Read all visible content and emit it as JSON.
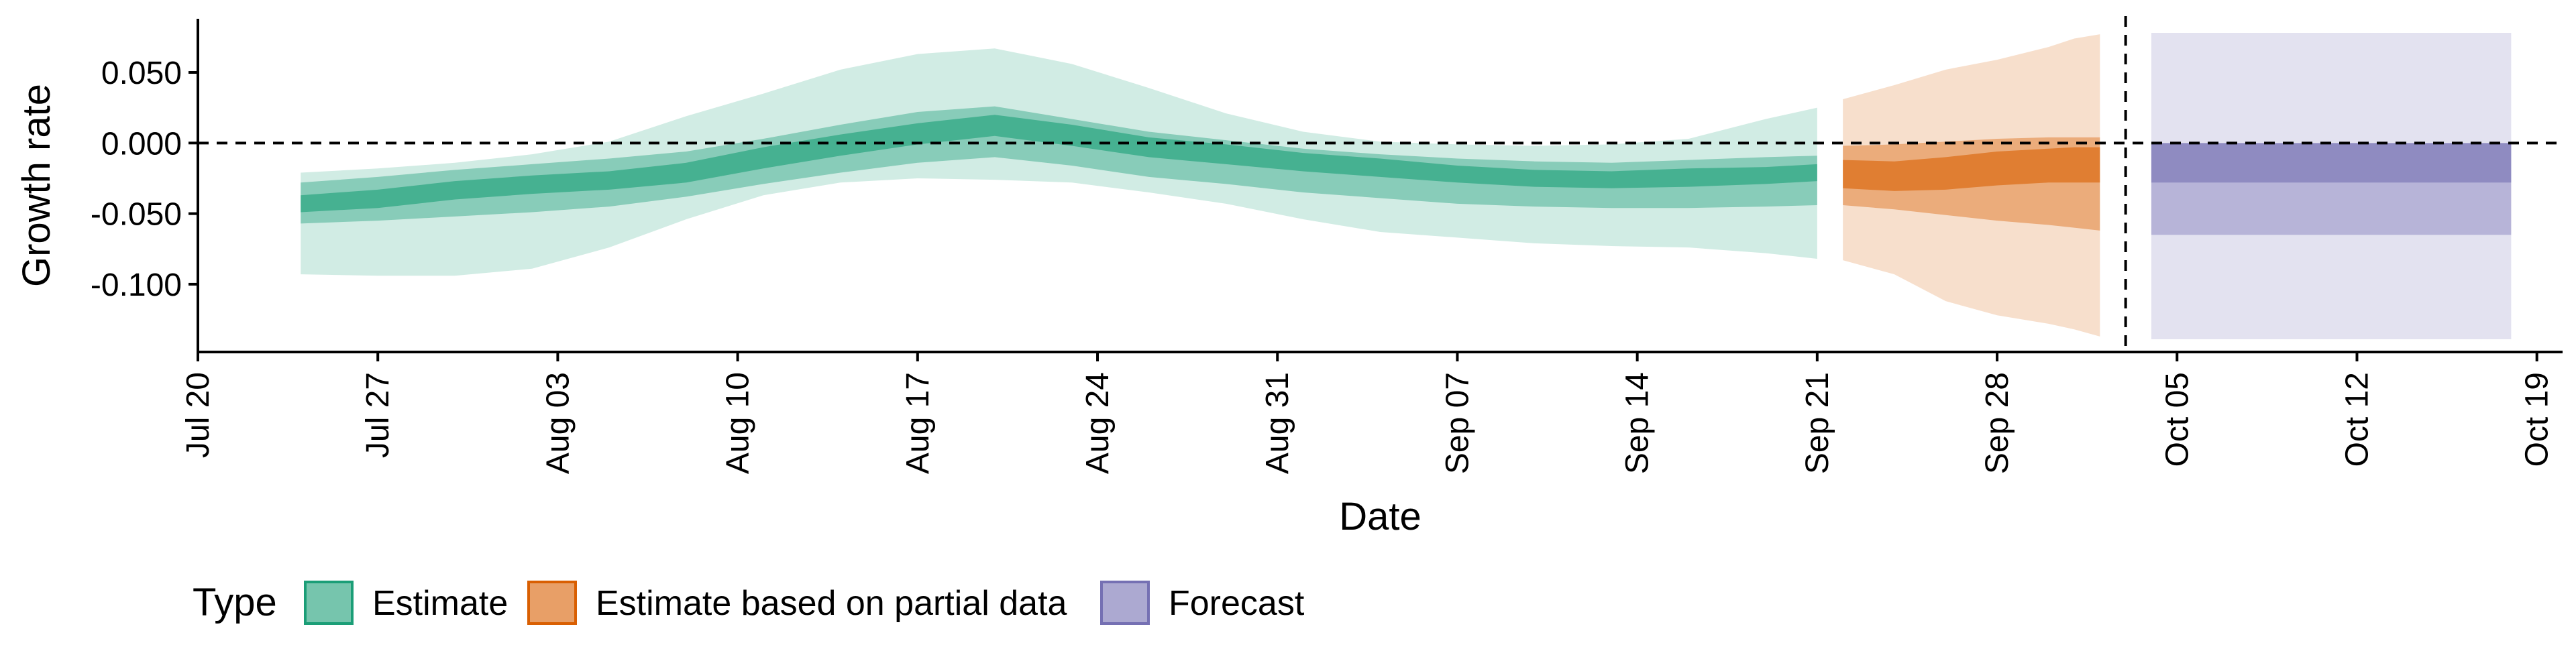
{
  "chart_data": {
    "type": "area",
    "title": "",
    "xlabel": "Date",
    "ylabel": "Growth rate",
    "x_ticks": [
      "Jul 20",
      "Jul 27",
      "Aug 03",
      "Aug 10",
      "Aug 17",
      "Aug 24",
      "Aug 31",
      "Sep 07",
      "Sep 14",
      "Sep 21",
      "Sep 28",
      "Oct 05",
      "Oct 12",
      "Oct 19"
    ],
    "x_tick_dates": [
      "2020-07-20",
      "2020-07-27",
      "2020-08-03",
      "2020-08-10",
      "2020-08-17",
      "2020-08-24",
      "2020-08-31",
      "2020-09-07",
      "2020-09-14",
      "2020-09-21",
      "2020-09-28",
      "2020-10-05",
      "2020-10-12",
      "2020-10-19"
    ],
    "y_ticks": [
      0.05,
      0.0,
      -0.05,
      -0.1
    ],
    "y_tick_labels": [
      "0.050",
      "0.000",
      "-0.050",
      "-0.100"
    ],
    "xlim": [
      "2020-07-20",
      "2020-10-20"
    ],
    "ylim": [
      -0.148,
      0.088
    ],
    "grid": false,
    "reference_lines": [
      {
        "orientation": "horizontal",
        "y": 0.0,
        "style": "dashed"
      },
      {
        "orientation": "vertical",
        "x": "2020-10-03",
        "style": "dashed"
      }
    ],
    "legend": {
      "title": "Type",
      "position": "bottom",
      "entries": [
        {
          "label": "Estimate",
          "fill": "#1B9E77",
          "stroke": "#1B9E77"
        },
        {
          "label": "Estimate based on partial data",
          "fill": "#D95F02",
          "stroke": "#D95F02"
        },
        {
          "label": "Forecast",
          "fill": "#7570B3",
          "stroke": "#7570B3"
        }
      ]
    },
    "series": [
      {
        "name": "Estimate",
        "color": "#1B9E77",
        "band_opacity": [
          0.2,
          0.4,
          0.6
        ],
        "x": [
          "2020-07-24",
          "2020-07-27",
          "2020-07-30",
          "2020-08-02",
          "2020-08-05",
          "2020-08-08",
          "2020-08-11",
          "2020-08-14",
          "2020-08-17",
          "2020-08-20",
          "2020-08-23",
          "2020-08-26",
          "2020-08-29",
          "2020-09-01",
          "2020-09-04",
          "2020-09-07",
          "2020-09-10",
          "2020-09-13",
          "2020-09-16",
          "2020-09-19",
          "2020-09-21"
        ],
        "median": [
          -0.043,
          -0.04,
          -0.033,
          -0.029,
          -0.026,
          -0.021,
          -0.01,
          -0.001,
          0.007,
          0.013,
          0.006,
          -0.003,
          -0.008,
          -0.014,
          -0.018,
          -0.022,
          -0.025,
          -0.026,
          -0.025,
          -0.023,
          -0.021
        ],
        "ci_90": [
          [
            -0.093,
            -0.021
          ],
          [
            -0.094,
            -0.018
          ],
          [
            -0.094,
            -0.014
          ],
          [
            -0.089,
            -0.008
          ],
          [
            -0.074,
            0.001
          ],
          [
            -0.054,
            0.019
          ],
          [
            -0.037,
            0.035
          ],
          [
            -0.028,
            0.052
          ],
          [
            -0.025,
            0.063
          ],
          [
            -0.026,
            0.067
          ],
          [
            -0.028,
            0.056
          ],
          [
            -0.035,
            0.039
          ],
          [
            -0.043,
            0.021
          ],
          [
            -0.054,
            0.008
          ],
          [
            -0.063,
            0.001
          ],
          [
            -0.067,
            -0.001
          ],
          [
            -0.071,
            -0.002
          ],
          [
            -0.073,
            -0.001
          ],
          [
            -0.074,
            0.003
          ],
          [
            -0.078,
            0.017
          ],
          [
            -0.082,
            0.025
          ]
        ],
        "ci_50": [
          [
            -0.057,
            -0.028
          ],
          [
            -0.055,
            -0.024
          ],
          [
            -0.052,
            -0.019
          ],
          [
            -0.049,
            -0.015
          ],
          [
            -0.045,
            -0.011
          ],
          [
            -0.038,
            -0.006
          ],
          [
            -0.029,
            0.003
          ],
          [
            -0.021,
            0.013
          ],
          [
            -0.014,
            0.022
          ],
          [
            -0.01,
            0.026
          ],
          [
            -0.016,
            0.017
          ],
          [
            -0.024,
            0.008
          ],
          [
            -0.029,
            0.002
          ],
          [
            -0.035,
            -0.004
          ],
          [
            -0.039,
            -0.008
          ],
          [
            -0.043,
            -0.011
          ],
          [
            -0.045,
            -0.013
          ],
          [
            -0.046,
            -0.014
          ],
          [
            -0.046,
            -0.012
          ],
          [
            -0.045,
            -0.01
          ],
          [
            -0.044,
            -0.009
          ]
        ],
        "ci_20": [
          [
            -0.049,
            -0.037
          ],
          [
            -0.046,
            -0.033
          ],
          [
            -0.04,
            -0.027
          ],
          [
            -0.036,
            -0.023
          ],
          [
            -0.033,
            -0.02
          ],
          [
            -0.028,
            -0.014
          ],
          [
            -0.018,
            -0.003
          ],
          [
            -0.009,
            0.006
          ],
          [
            -0.001,
            0.014
          ],
          [
            0.005,
            0.02
          ],
          [
            -0.002,
            0.013
          ],
          [
            -0.01,
            0.004
          ],
          [
            -0.015,
            -0.001
          ],
          [
            -0.02,
            -0.007
          ],
          [
            -0.024,
            -0.011
          ],
          [
            -0.028,
            -0.016
          ],
          [
            -0.031,
            -0.019
          ],
          [
            -0.032,
            -0.02
          ],
          [
            -0.031,
            -0.018
          ],
          [
            -0.029,
            -0.017
          ],
          [
            -0.027,
            -0.015
          ]
        ]
      },
      {
        "name": "Estimate based on partial data",
        "color": "#D95F02",
        "band_opacity": [
          0.2,
          0.4,
          0.6
        ],
        "x": [
          "2020-09-22",
          "2020-09-24",
          "2020-09-26",
          "2020-09-28",
          "2020-09-30",
          "2020-10-01",
          "2020-10-02"
        ],
        "median": [
          -0.022,
          -0.023,
          -0.021,
          -0.018,
          -0.016,
          -0.015,
          -0.015
        ],
        "ci_90": [
          [
            -0.083,
            0.031
          ],
          [
            -0.093,
            0.041
          ],
          [
            -0.112,
            0.052
          ],
          [
            -0.122,
            0.059
          ],
          [
            -0.128,
            0.068
          ],
          [
            -0.132,
            0.074
          ],
          [
            -0.137,
            0.077
          ]
        ],
        "ci_50": [
          [
            -0.044,
            -0.002
          ],
          [
            -0.047,
            -0.001
          ],
          [
            -0.051,
            0.001
          ],
          [
            -0.055,
            0.003
          ],
          [
            -0.058,
            0.004
          ],
          [
            -0.06,
            0.004
          ],
          [
            -0.062,
            0.004
          ]
        ],
        "ci_20": [
          [
            -0.032,
            -0.012
          ],
          [
            -0.034,
            -0.013
          ],
          [
            -0.033,
            -0.01
          ],
          [
            -0.03,
            -0.006
          ],
          [
            -0.028,
            -0.004
          ],
          [
            -0.028,
            -0.003
          ],
          [
            -0.028,
            -0.003
          ]
        ]
      },
      {
        "name": "Forecast",
        "color": "#7570B3",
        "band_opacity": [
          0.2,
          0.4,
          0.6
        ],
        "x": [
          "2020-10-04",
          "2020-10-18"
        ],
        "median": [
          -0.015,
          -0.015
        ],
        "ci_90": [
          [
            -0.139,
            0.078
          ],
          [
            -0.139,
            0.078
          ]
        ],
        "ci_50": [
          [
            -0.065,
            0.0
          ],
          [
            -0.065,
            0.0
          ]
        ],
        "ci_20": [
          [
            -0.028,
            0.0
          ],
          [
            -0.028,
            0.0
          ]
        ]
      }
    ]
  }
}
